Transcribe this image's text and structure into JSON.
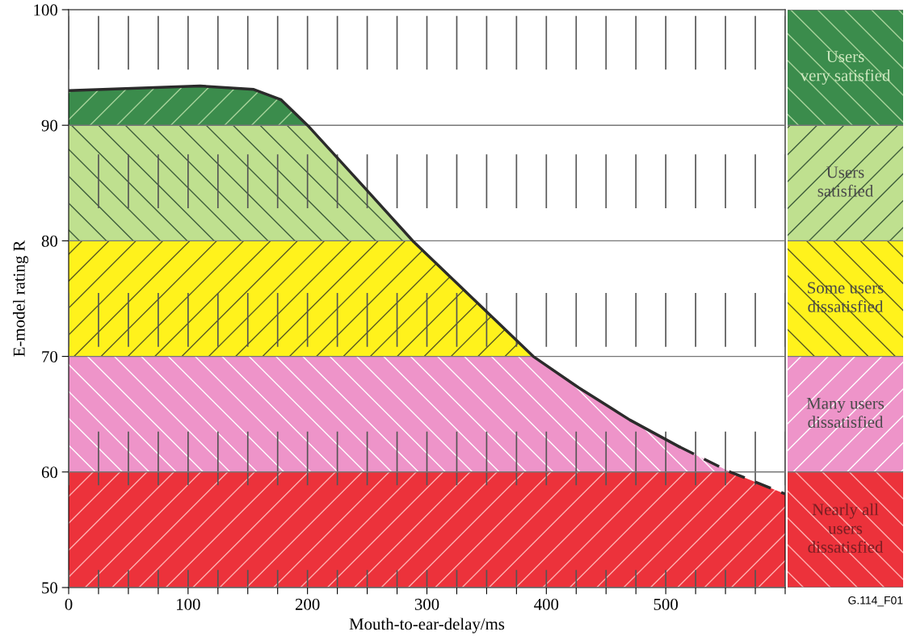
{
  "chart_data": {
    "type": "line",
    "xlabel": "Mouth-to-ear-delay/ms",
    "ylabel": "E-model rating R",
    "xlim": [
      0,
      600
    ],
    "ylim": [
      50,
      100
    ],
    "xticks": [
      0,
      {
        "value": 25,
        "label": null
      },
      {
        "value": 50,
        "label": null
      },
      {
        "value": 75,
        "label": null
      },
      100,
      {
        "value": 125,
        "label": null
      },
      {
        "value": 150,
        "label": null
      },
      {
        "value": 175,
        "label": null
      },
      200,
      {
        "value": 225,
        "label": null
      },
      {
        "value": 250,
        "label": null
      },
      {
        "value": 275,
        "label": null
      },
      300,
      {
        "value": 325,
        "label": null
      },
      {
        "value": 350,
        "label": null
      },
      {
        "value": 375,
        "label": null
      },
      400,
      {
        "value": 425,
        "label": null
      },
      {
        "value": 450,
        "label": null
      },
      {
        "value": 475,
        "label": null
      },
      500,
      {
        "value": 525,
        "label": null
      },
      {
        "value": 550,
        "label": null
      },
      {
        "value": 575,
        "label": null
      },
      {
        "value": 600,
        "label": null
      }
    ],
    "yticks": [
      50,
      60,
      70,
      80,
      90,
      100
    ],
    "grid": true,
    "marker": "none",
    "series": [
      {
        "color": "#2b2b2b",
        "line_style": "solid",
        "x": [
          0,
          110,
          155,
          178,
          200,
          246,
          289,
          389,
          427,
          470,
          511
        ],
        "values": [
          93.0,
          93.4,
          93.1,
          92.2,
          90.0,
          84.8,
          79.9,
          70.0,
          67.3,
          64.5,
          62.2
        ]
      },
      {
        "color": "#2b2b2b",
        "line_style": "dashed",
        "x": [
          511,
          554,
          600
        ],
        "values": [
          62.2,
          60.0,
          58.1
        ]
      }
    ],
    "bands": [
      {
        "axis": "y",
        "from": 90,
        "to": 100,
        "label": "Users\nvery satisfied",
        "color": "#3b8c4c"
      },
      {
        "axis": "y",
        "from": 80,
        "to": 90,
        "label": "Users\nsatisfied",
        "color": "#bfe08f"
      },
      {
        "axis": "y",
        "from": 70,
        "to": 80,
        "label": "Some users\ndissatisfied",
        "color": "#fff21c"
      },
      {
        "axis": "y",
        "from": 60,
        "to": 70,
        "label": "Many users\ndissatisfied",
        "color": "#ee94c9"
      },
      {
        "axis": "y",
        "from": 50,
        "to": 60,
        "label": "Nearly all\nusers\ndissatisfied",
        "color": "#ec323b"
      }
    ],
    "annotations": [
      "G.114_F01"
    ]
  }
}
